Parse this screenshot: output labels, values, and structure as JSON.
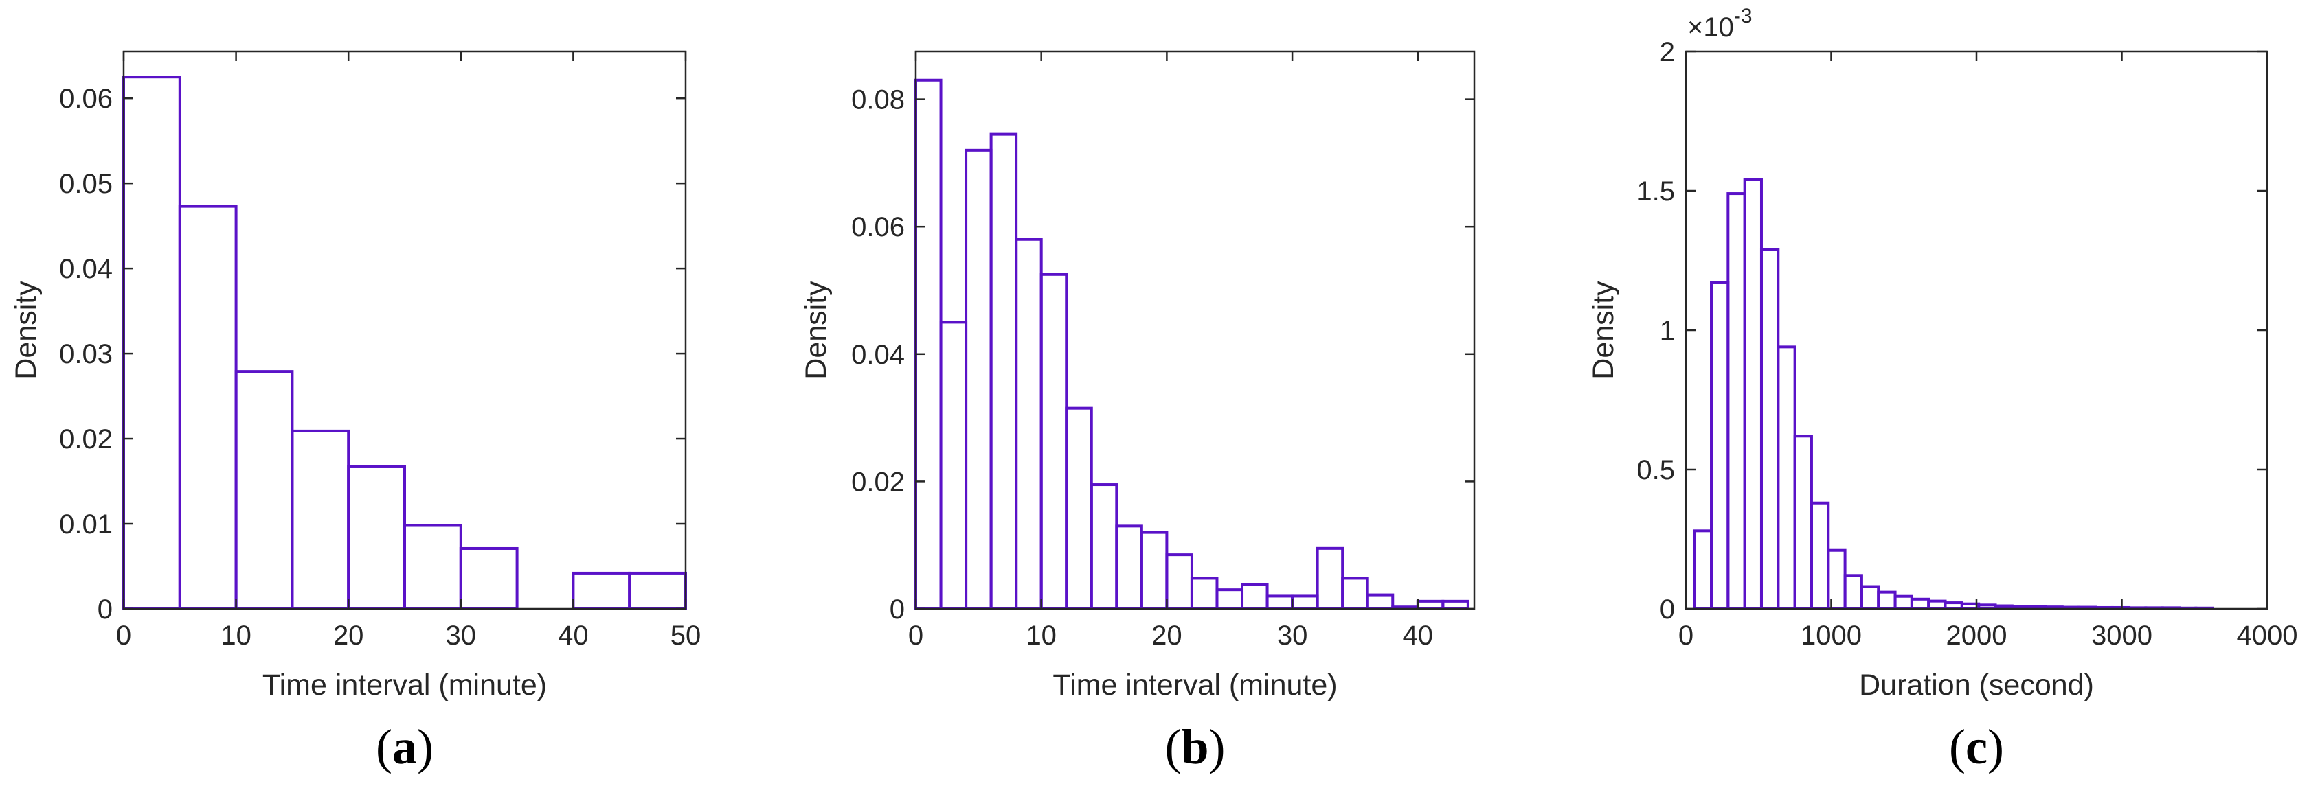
{
  "bar_color": "#5A12C8",
  "axis_color": "#262626",
  "chart_data": [
    {
      "type": "bar",
      "panel_label": "(a)",
      "panel_letter": "a",
      "xlabel": "Time interval (minute)",
      "ylabel": "Density",
      "xlim": [
        0,
        50
      ],
      "ylim": [
        0,
        0.0655
      ],
      "xticks": [
        0,
        10,
        20,
        30,
        40,
        50
      ],
      "yticks": [
        0,
        0.01,
        0.02,
        0.03,
        0.04,
        0.05,
        0.06
      ],
      "ytick_labels": [
        "0",
        "0.01",
        "0.02",
        "0.03",
        "0.04",
        "0.05",
        "0.06"
      ],
      "bin_edges": [
        0,
        5,
        10,
        15,
        20,
        25,
        30,
        35,
        40,
        45,
        50
      ],
      "values": [
        0.0625,
        0.0473,
        0.0279,
        0.0209,
        0.0167,
        0.0098,
        0.0071,
        0.0,
        0.0042,
        0.0042
      ]
    },
    {
      "type": "bar",
      "panel_label": "(b)",
      "panel_letter": "b",
      "xlabel": "Time interval (minute)",
      "ylabel": "Density",
      "xlim": [
        0,
        44.5
      ],
      "ylim": [
        0,
        0.0875
      ],
      "xticks": [
        0,
        10,
        20,
        30,
        40
      ],
      "yticks": [
        0,
        0.02,
        0.04,
        0.06,
        0.08
      ],
      "ytick_labels": [
        "0",
        "0.02",
        "0.04",
        "0.06",
        "0.08"
      ],
      "bin_edges": [
        0,
        2,
        4,
        6,
        8,
        10,
        12,
        14,
        16,
        18,
        20,
        22,
        24,
        26,
        28,
        30,
        32,
        34,
        36,
        38,
        40,
        42,
        44
      ],
      "values": [
        0.083,
        0.045,
        0.072,
        0.0745,
        0.058,
        0.0525,
        0.0315,
        0.0195,
        0.013,
        0.012,
        0.0085,
        0.0048,
        0.003,
        0.0038,
        0.002,
        0.002,
        0.0095,
        0.0048,
        0.0022,
        0.0003,
        0.0012,
        0.0012
      ]
    },
    {
      "type": "bar",
      "panel_label": "(c)",
      "panel_letter": "c",
      "xlabel": "Duration (second)",
      "ylabel": "Density",
      "xlim": [
        0,
        4000
      ],
      "ylim": [
        0,
        2
      ],
      "y_scale_note": "×10^-3",
      "exponent_base": "×10",
      "exponent_power": "-3",
      "xticks": [
        0,
        1000,
        2000,
        3000,
        4000
      ],
      "yticks": [
        0,
        0.5,
        1,
        1.5,
        2
      ],
      "ytick_labels": [
        "0",
        "0.5",
        "1",
        "1.5",
        "2"
      ],
      "bin_edges": [
        60,
        175,
        290,
        405,
        520,
        635,
        750,
        865,
        980,
        1095,
        1210,
        1325,
        1440,
        1555,
        1670,
        1785,
        1900,
        2015,
        2130,
        2245,
        2360,
        2475,
        2590,
        2705,
        2820,
        2935,
        3050,
        3165,
        3280,
        3395,
        3510,
        3625
      ],
      "values": [
        0.28,
        1.17,
        1.49,
        1.54,
        1.29,
        0.94,
        0.62,
        0.38,
        0.21,
        0.12,
        0.08,
        0.06,
        0.045,
        0.035,
        0.028,
        0.022,
        0.018,
        0.014,
        0.011,
        0.009,
        0.008,
        0.007,
        0.006,
        0.006,
        0.005,
        0.005,
        0.004,
        0.004,
        0.004,
        0.003,
        0.003
      ]
    }
  ]
}
